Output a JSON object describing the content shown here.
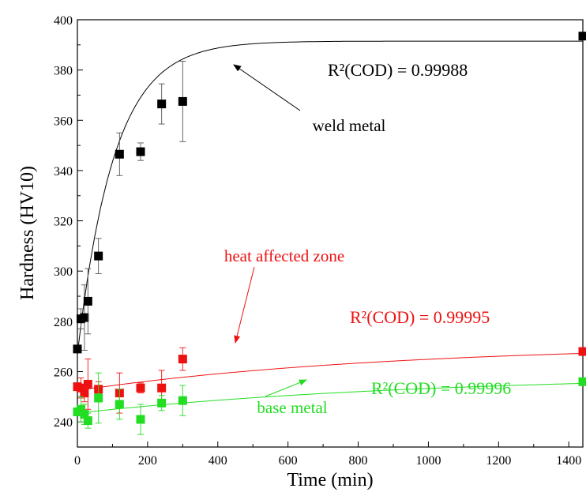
{
  "chart_data": {
    "type": "scatter",
    "xlabel": "Time (min)",
    "ylabel": "Hardness (HV10)",
    "xlim": [
      0,
      1440
    ],
    "ylim": [
      230,
      400
    ],
    "xticks": [
      0,
      200,
      400,
      600,
      800,
      1000,
      1200,
      1400
    ],
    "yticks": [
      240,
      260,
      280,
      300,
      320,
      340,
      360,
      380,
      400
    ],
    "grid": false,
    "series": [
      {
        "name": "weld metal",
        "color": "#000000",
        "x": [
          0,
          10,
          20,
          30,
          60,
          120,
          180,
          240,
          300,
          1440
        ],
        "y": [
          269,
          281,
          281.5,
          288,
          306,
          346.5,
          347.5,
          366.5,
          367.5,
          393.5
        ],
        "err": [
          0,
          4,
          13,
          13,
          7,
          8.5,
          3.5,
          8,
          16,
          0
        ],
        "fit": {
          "model": "exp_plateau",
          "y0": 267,
          "plateau": 391.5,
          "tau": 105
        },
        "label": "weld metal",
        "r2": "R²(COD) = 0.99988"
      },
      {
        "name": "heat affected zone",
        "color": "#ee1111",
        "x": [
          0,
          10,
          20,
          30,
          60,
          120,
          180,
          240,
          300,
          1440
        ],
        "y": [
          254,
          253.5,
          251.5,
          255,
          253,
          251.5,
          253.5,
          253.5,
          265,
          268
        ],
        "err": [
          0,
          4,
          3.5,
          10,
          3,
          8,
          2,
          7,
          4.5,
          0
        ],
        "fit": {
          "model": "exp_plateau",
          "y0": 252.5,
          "plateau": 271,
          "tau": 900
        },
        "label": "heat affected zone",
        "r2": "R²(COD) = 0.99995"
      },
      {
        "name": "base metal",
        "color": "#22dd22",
        "x": [
          0,
          10,
          20,
          30,
          60,
          120,
          180,
          240,
          300,
          1440
        ],
        "y": [
          244,
          245,
          243,
          240.5,
          249.5,
          247,
          241,
          247.5,
          248.5,
          256
        ],
        "err": [
          0,
          5,
          4,
          3,
          10,
          6,
          6,
          3,
          6,
          0
        ],
        "fit": {
          "model": "exp_plateau",
          "y0": 243.5,
          "plateau": 259,
          "tau": 1000
        },
        "label": "base metal",
        "r2": "R²(COD) = 0.99996"
      }
    ]
  }
}
